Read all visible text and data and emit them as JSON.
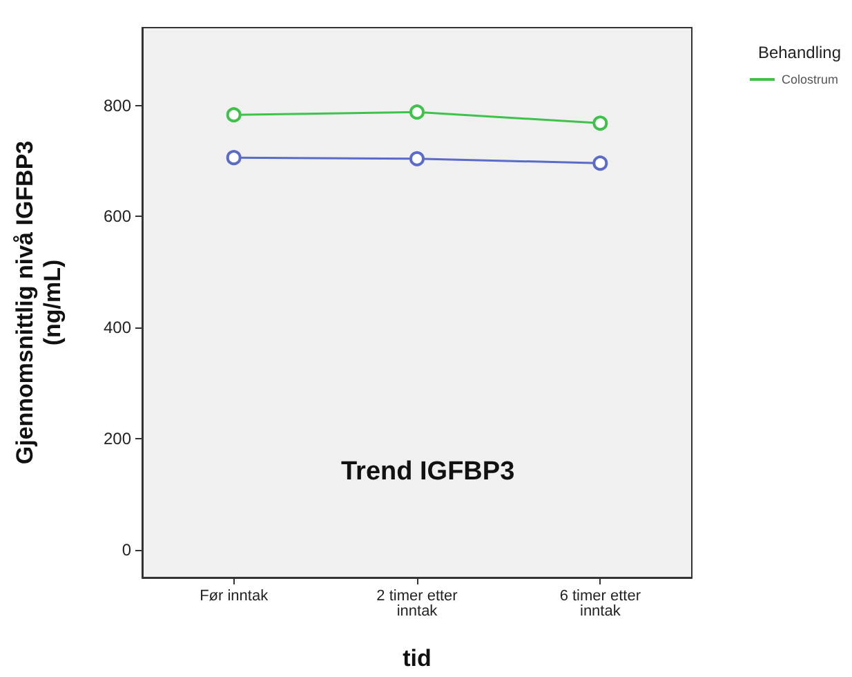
{
  "chart_data": {
    "type": "line",
    "xlabel": "tid",
    "ylabel": "Gjennomsnittlig nivå IGFBP3\n(ng/mL)",
    "legend_title": "Behandling",
    "annotations": [
      "Trend IGFBP3"
    ],
    "categories": [
      "Før inntak",
      "2 timer etter\ninntak",
      "6 timer etter\ninntak"
    ],
    "series": [
      {
        "color": "#5b6bc8",
        "values": [
          706,
          704,
          696
        ]
      },
      {
        "name": "Colostrum",
        "color": "#3fc24a",
        "values": [
          783,
          788,
          768
        ]
      }
    ],
    "ylim": [
      -50,
      940
    ],
    "yticks": [
      0,
      200,
      400,
      600,
      800
    ],
    "grid": false,
    "legend": "top right",
    "marker": "circle"
  }
}
